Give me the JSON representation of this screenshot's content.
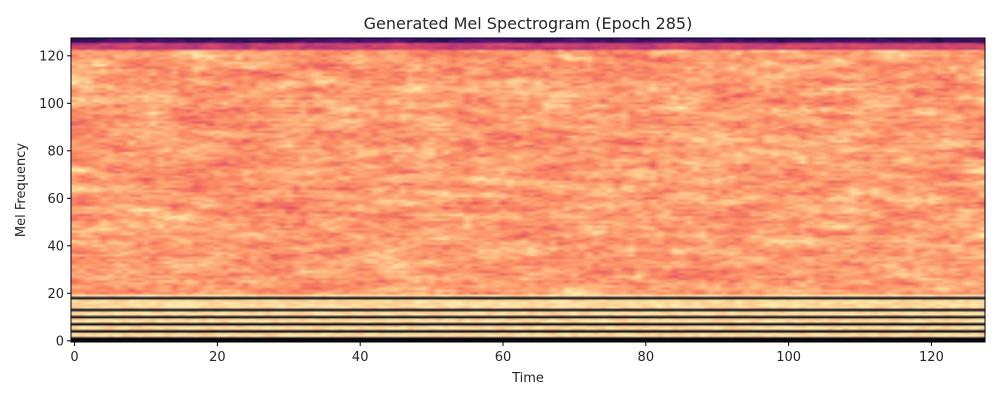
{
  "chart_data": {
    "type": "heatmap",
    "title": "Generated Mel Spectrogram (Epoch 285)",
    "xlabel": "Time",
    "ylabel": "Mel Frequency",
    "xlim": [
      -0.5,
      127.5
    ],
    "ylim": [
      -0.5,
      127.5
    ],
    "x_ticks": [
      0,
      20,
      40,
      60,
      80,
      100,
      120
    ],
    "y_ticks": [
      0,
      20,
      40,
      60,
      80,
      100,
      120
    ],
    "grid": false,
    "colormap": "magma",
    "colors": {
      "low": "#000004",
      "mid_low": "#51127c",
      "mid": "#b73779",
      "mid_high": "#fc8961",
      "high": "#fcfdbf"
    },
    "dark_bands_mel": [
      0,
      1,
      4,
      7,
      10,
      13,
      18
    ],
    "top_edge_dark_mel": [
      125,
      127
    ]
  }
}
